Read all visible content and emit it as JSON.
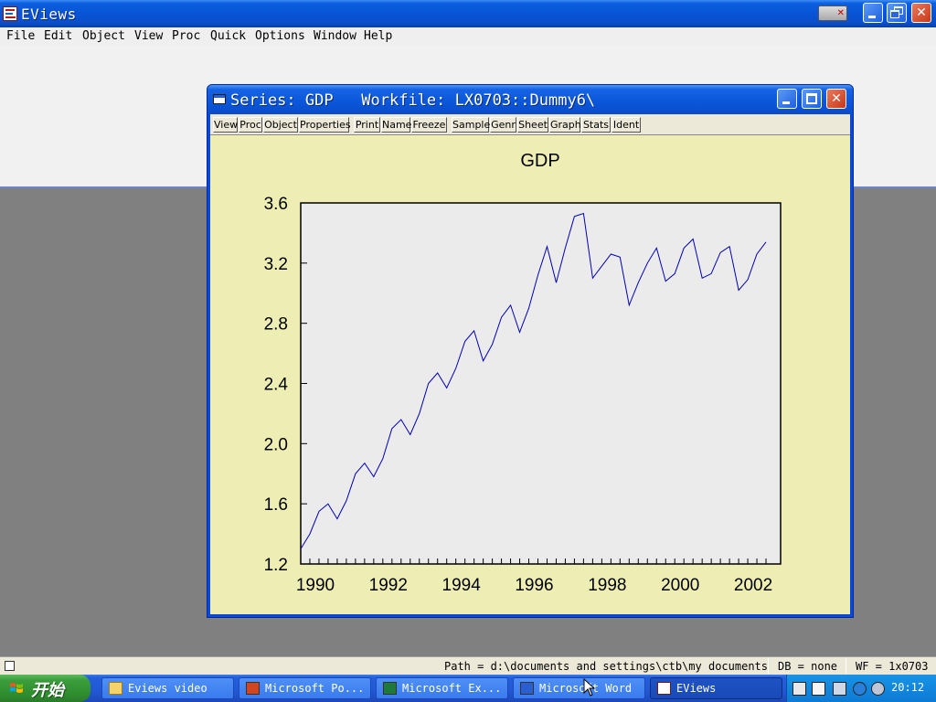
{
  "app": {
    "title": "EViews"
  },
  "menu": [
    "File",
    "Edit",
    "Object",
    "View",
    "Proc",
    "Quick",
    "Options",
    "Window",
    "Help"
  ],
  "series_window": {
    "title": "Series: GDP   Workfile: LX0703::Dummy6\\",
    "toolbar": [
      "View",
      "Proc",
      "Object",
      "Properties",
      "Print",
      "Name",
      "Freeze",
      "Sample",
      "Genr",
      "Sheet",
      "Graph",
      "Stats",
      "Ident"
    ]
  },
  "chart_data": {
    "type": "line",
    "title": "GDP",
    "xlabel": "",
    "ylabel": "",
    "xlim": [
      1989.6,
      2002.75
    ],
    "ylim": [
      1.2,
      3.6
    ],
    "yticks": [
      "1.2",
      "1.6",
      "2.0",
      "2.4",
      "2.8",
      "3.2",
      "3.6"
    ],
    "xticks": [
      "1990",
      "1992",
      "1994",
      "1996",
      "1998",
      "2000",
      "2002"
    ],
    "frequency": "quarterly",
    "grid": false,
    "color": "#0000b4",
    "series": [
      {
        "start": 1989.6,
        "step": 0.25,
        "values": [
          1.3,
          1.4,
          1.55,
          1.6,
          1.5,
          1.62,
          1.8,
          1.87,
          1.78,
          1.9,
          2.1,
          2.16,
          2.06,
          2.2,
          2.4,
          2.47,
          2.37,
          2.5,
          2.68,
          2.75,
          2.55,
          2.66,
          2.84,
          2.92,
          2.74,
          2.9,
          3.12,
          3.31,
          3.07,
          3.3,
          3.51,
          3.53,
          3.1,
          3.18,
          3.26,
          3.24,
          2.92,
          3.07,
          3.2,
          3.3,
          3.08,
          3.13,
          3.3,
          3.36,
          3.1,
          3.13,
          3.27,
          3.31,
          3.02,
          3.09,
          3.26,
          3.34
        ]
      }
    ]
  },
  "status": {
    "path": "Path = d:\\documents and settings\\ctb\\my documents",
    "db": "DB = none",
    "wf": "WF = 1x0703"
  },
  "taskbar": {
    "start_label": "开始",
    "items": [
      {
        "label": "Eviews video",
        "icon": "folder-icon",
        "active": false
      },
      {
        "label": "Microsoft Po...",
        "icon": "powerpoint-icon",
        "active": false
      },
      {
        "label": "Microsoft Ex...",
        "icon": "excel-icon",
        "active": false
      },
      {
        "label": "Microsoft Word",
        "icon": "word-icon",
        "active": false
      },
      {
        "label": "EViews",
        "icon": "eviews-icon",
        "active": true
      }
    ],
    "clock": "20:12"
  }
}
